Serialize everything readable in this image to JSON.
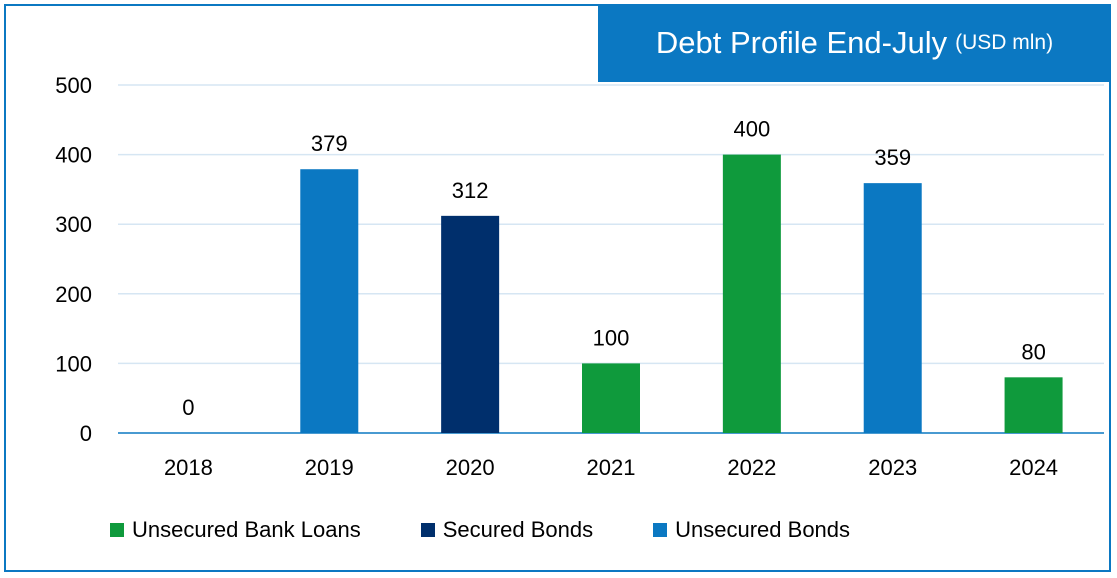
{
  "chart_data": {
    "type": "bar",
    "title": "Debt Profile End-July",
    "title_unit": "(USD mln)",
    "xlabel": "",
    "ylabel": "",
    "ylim": [
      0,
      500
    ],
    "yticks": [
      0,
      100,
      200,
      300,
      400,
      500
    ],
    "grid": true,
    "legend_position": "bottom",
    "categories": [
      "2018",
      "2019",
      "2020",
      "2021",
      "2022",
      "2023",
      "2024"
    ],
    "values": [
      0,
      379,
      312,
      100,
      400,
      359,
      80
    ],
    "bar_series": [
      "",
      "Unsecured Bonds",
      "Secured Bonds",
      "Unsecured Bank Loans",
      "Unsecured Bank Loans",
      "Unsecured Bonds",
      "Unsecured Bank Loans"
    ],
    "series": [
      {
        "name": "Unsecured Bank Loans",
        "color": "#0f9a3c"
      },
      {
        "name": "Secured Bonds",
        "color": "#002f6c"
      },
      {
        "name": "Unsecured Bonds",
        "color": "#0b78c2"
      }
    ]
  }
}
